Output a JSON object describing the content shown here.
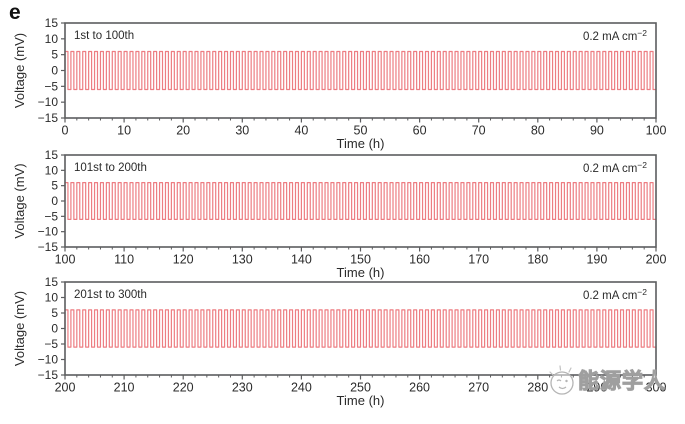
{
  "figure_label": "e",
  "watermark": {
    "text": "能源学人"
  },
  "colors": {
    "wave": "#ed7d82",
    "frame": "#5c5d5f",
    "text": "#2b2b2b",
    "tick_text": "#2b2b2b",
    "watermark": "#9f9f9f"
  },
  "chart_data": [
    {
      "type": "line",
      "annotation_left": "1st to 100th",
      "annotation_right": {
        "base": "0.2 mA cm",
        "exponent": "−2"
      },
      "xlabel": "Time (h)",
      "ylabel": "Voltage (mV)",
      "xlim": [
        0,
        100
      ],
      "ylim": [
        -15,
        15
      ],
      "x_ticks": [
        0,
        10,
        20,
        30,
        40,
        50,
        60,
        70,
        80,
        90,
        100
      ],
      "x_minor_step": 2,
      "y_ticks": [
        15,
        10,
        5,
        0,
        -5,
        -10,
        -15
      ],
      "grid": false,
      "waveform": {
        "shape": "square",
        "amplitude_mV": 6,
        "period_h": 1,
        "duty": 0.5,
        "cycles": 100
      }
    },
    {
      "type": "line",
      "annotation_left": "101st to 200th",
      "annotation_right": {
        "base": "0.2 mA cm",
        "exponent": "−2"
      },
      "xlabel": "Time (h)",
      "ylabel": "Voltage (mV)",
      "xlim": [
        100,
        200
      ],
      "ylim": [
        -15,
        15
      ],
      "x_ticks": [
        100,
        110,
        120,
        130,
        140,
        150,
        160,
        170,
        180,
        190,
        200
      ],
      "x_minor_step": 2,
      "y_ticks": [
        15,
        10,
        5,
        0,
        -5,
        -10,
        -15
      ],
      "grid": false,
      "waveform": {
        "shape": "square",
        "amplitude_mV": 6,
        "period_h": 1,
        "duty": 0.5,
        "cycles": 100
      }
    },
    {
      "type": "line",
      "annotation_left": "201st to 300th",
      "annotation_right": {
        "base": "0.2 mA cm",
        "exponent": "−2"
      },
      "xlabel": "Time (h)",
      "ylabel": "Voltage (mV)",
      "xlim": [
        200,
        300
      ],
      "ylim": [
        -15,
        15
      ],
      "x_ticks": [
        200,
        210,
        220,
        230,
        240,
        250,
        260,
        270,
        280,
        290,
        300
      ],
      "x_minor_step": 2,
      "y_ticks": [
        15,
        10,
        5,
        0,
        -5,
        -10,
        -15
      ],
      "grid": false,
      "waveform": {
        "shape": "square",
        "amplitude_mV": 6,
        "period_h": 1,
        "duty": 0.5,
        "cycles": 100
      }
    }
  ]
}
